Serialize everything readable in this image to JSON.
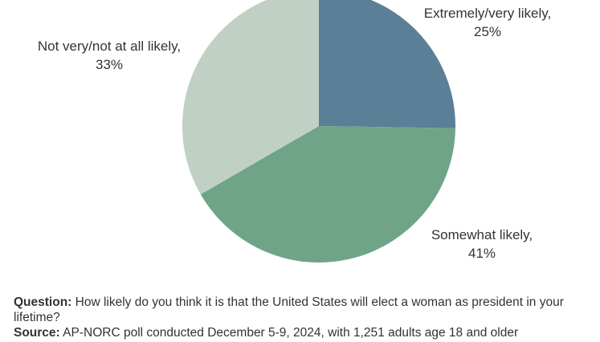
{
  "chart_data": {
    "type": "pie",
    "slices": [
      {
        "label": "Extremely/very likely",
        "value": 25,
        "value_label": "25%",
        "color": "#5b7f96"
      },
      {
        "label": "Somewhat likely",
        "value": 41,
        "value_label": "41%",
        "color": "#6fa488"
      },
      {
        "label": "Not very/not at all likely",
        "value": 33,
        "value_label": "33%",
        "color": "#c0d0c5"
      }
    ]
  },
  "footnote": {
    "question_label": "Question:",
    "question_text": " How likely do you think it is that the United States will elect a woman as president in your lifetime?",
    "source_label": "Source:",
    "source_text": " AP-NORC poll conducted December 5-9, 2024, with 1,251 adults age 18 and older"
  }
}
